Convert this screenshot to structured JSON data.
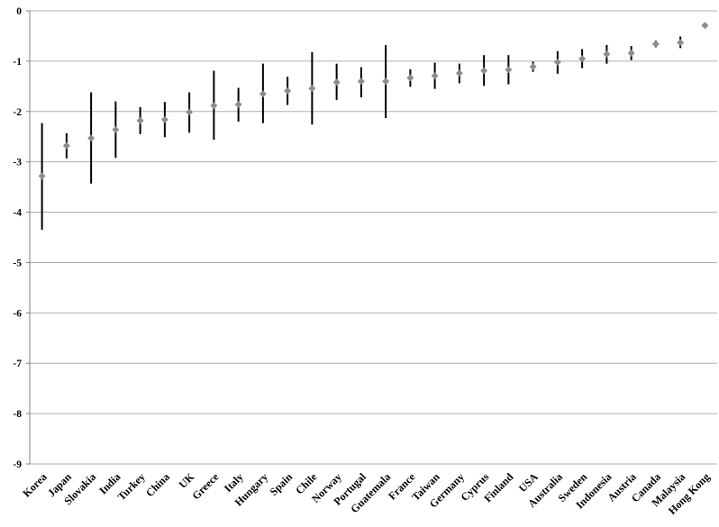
{
  "chart_data": {
    "type": "scatter",
    "title": "",
    "xlabel": "",
    "ylabel": "",
    "ylim": [
      -9,
      0
    ],
    "yticks": [
      0,
      -1,
      -2,
      -3,
      -4,
      -5,
      -6,
      -7,
      -8,
      -9
    ],
    "grid": true,
    "legend": "none",
    "colors": {
      "marker": "#8c8c8c",
      "error_bar": "#000000",
      "grid": "#b0b0b0",
      "axis": "#808080"
    },
    "categories": [
      "Korea",
      "Japan",
      "Slovakia",
      "India",
      "Turkey",
      "China",
      "UK",
      "Greece",
      "Italy",
      "Hungary",
      "Spain",
      "Chile",
      "Norway",
      "Portugal",
      "Guatemala",
      "France",
      "Taiwan",
      "Germany",
      "Cyprus",
      "Finland",
      "USA",
      "Australia",
      "Sweden",
      "Indonesia",
      "Austria",
      "Canada",
      "Malaysia",
      "Hong Kong"
    ],
    "values": [
      -3.28,
      -2.68,
      -2.53,
      -2.36,
      -2.18,
      -2.16,
      -2.01,
      -1.88,
      -1.86,
      -1.65,
      -1.59,
      -1.54,
      -1.42,
      -1.4,
      -1.4,
      -1.33,
      -1.29,
      -1.24,
      -1.19,
      -1.17,
      -1.11,
      -1.02,
      -0.95,
      -0.86,
      -0.84,
      -0.66,
      -0.63,
      -0.29
    ],
    "error_low": [
      -4.35,
      -2.93,
      -3.43,
      -2.92,
      -2.45,
      -2.51,
      -2.42,
      -2.56,
      -2.2,
      -2.23,
      -1.87,
      -2.26,
      -1.77,
      -1.72,
      -2.13,
      -1.51,
      -1.55,
      -1.44,
      -1.49,
      -1.46,
      -1.21,
      -1.25,
      -1.14,
      -1.05,
      -0.98,
      -0.73,
      -0.74,
      -0.29
    ],
    "error_high": [
      -2.23,
      -2.43,
      -1.62,
      -1.8,
      -1.91,
      -1.81,
      -1.62,
      -1.19,
      -1.53,
      -1.05,
      -1.31,
      -0.82,
      -1.05,
      -1.12,
      -0.68,
      -1.16,
      -1.03,
      -1.05,
      -0.88,
      -0.88,
      -1.01,
      -0.8,
      -0.76,
      -0.68,
      -0.7,
      -0.59,
      -0.51,
      -0.29
    ]
  }
}
